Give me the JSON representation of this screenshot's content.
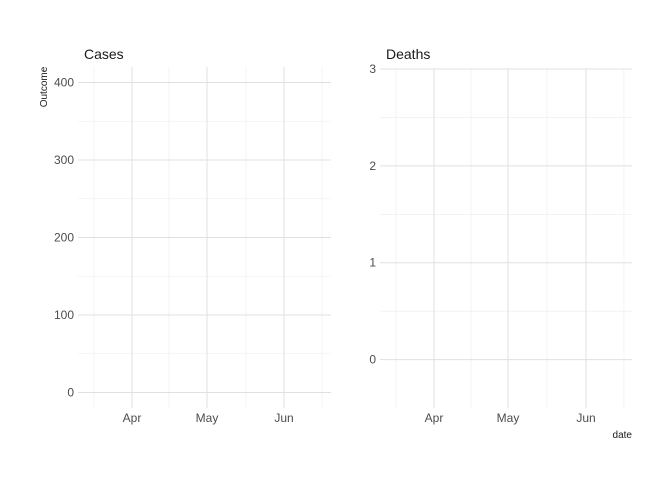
{
  "chart_data": {
    "type": "line",
    "x_axis_title": "date",
    "y_axis_title": "Outcome",
    "x_tick_labels": [
      "Apr",
      "May",
      "Jun"
    ],
    "grid": true,
    "facets": [
      {
        "title": "Cases",
        "ylim": [
          -20,
          420
        ],
        "y_ticks": [
          0,
          100,
          200,
          300,
          400
        ],
        "series": []
      },
      {
        "title": "Deaths",
        "ylim": [
          -0.5,
          3
        ],
        "y_ticks": [
          0,
          1,
          2,
          3
        ],
        "series": []
      }
    ]
  }
}
